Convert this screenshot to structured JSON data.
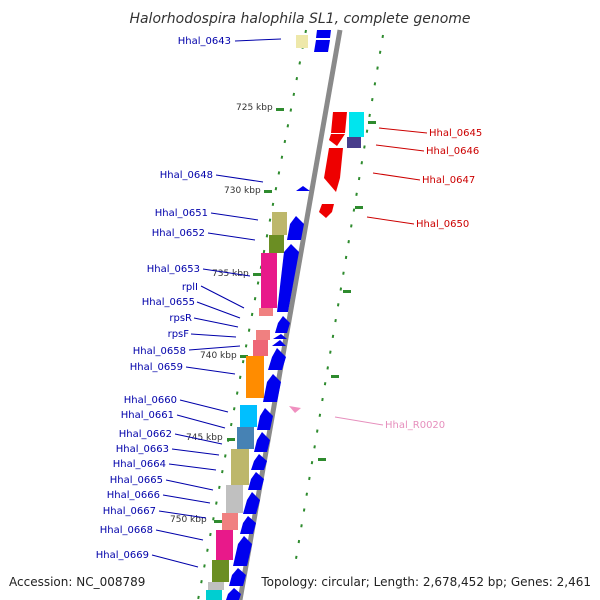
{
  "title": "Halorhodospira halophila SL1, complete genome",
  "accession": "Accession: NC_008789",
  "topology": "Topology: circular; Length: 2,678,452 bp; Genes: 2,461",
  "colors": {
    "backbone": "#8a8a8a",
    "tick": "#2e8b2e",
    "label_left": "#0000aa",
    "label_right": "#cc0000",
    "label_rna": "#e68fbd",
    "strand_plus": "#0000ee",
    "strand_minus": "#ee0000"
  },
  "kbp_labels": [
    "725 kbp",
    "730 kbp",
    "735 kbp",
    "740 kbp",
    "745 kbp",
    "750 kbp"
  ],
  "left_labels": [
    "Hhal_0643",
    "Hhal_0648",
    "Hhal_0651",
    "Hhal_0652",
    "Hhal_0653",
    "rplI",
    "Hhal_0655",
    "rpsR",
    "rpsF",
    "Hhal_0658",
    "Hhal_0659",
    "Hhal_0660",
    "Hhal_0661",
    "Hhal_0662",
    "Hhal_0663",
    "Hhal_0664",
    "Hhal_0665",
    "Hhal_0666",
    "Hhal_0667",
    "Hhal_0668",
    "Hhal_0669"
  ],
  "right_labels": [
    "Hhal_0645",
    "Hhal_0646",
    "Hhal_0647",
    "Hhal_0650"
  ],
  "rna_labels": [
    "Hhal_R0020"
  ]
}
